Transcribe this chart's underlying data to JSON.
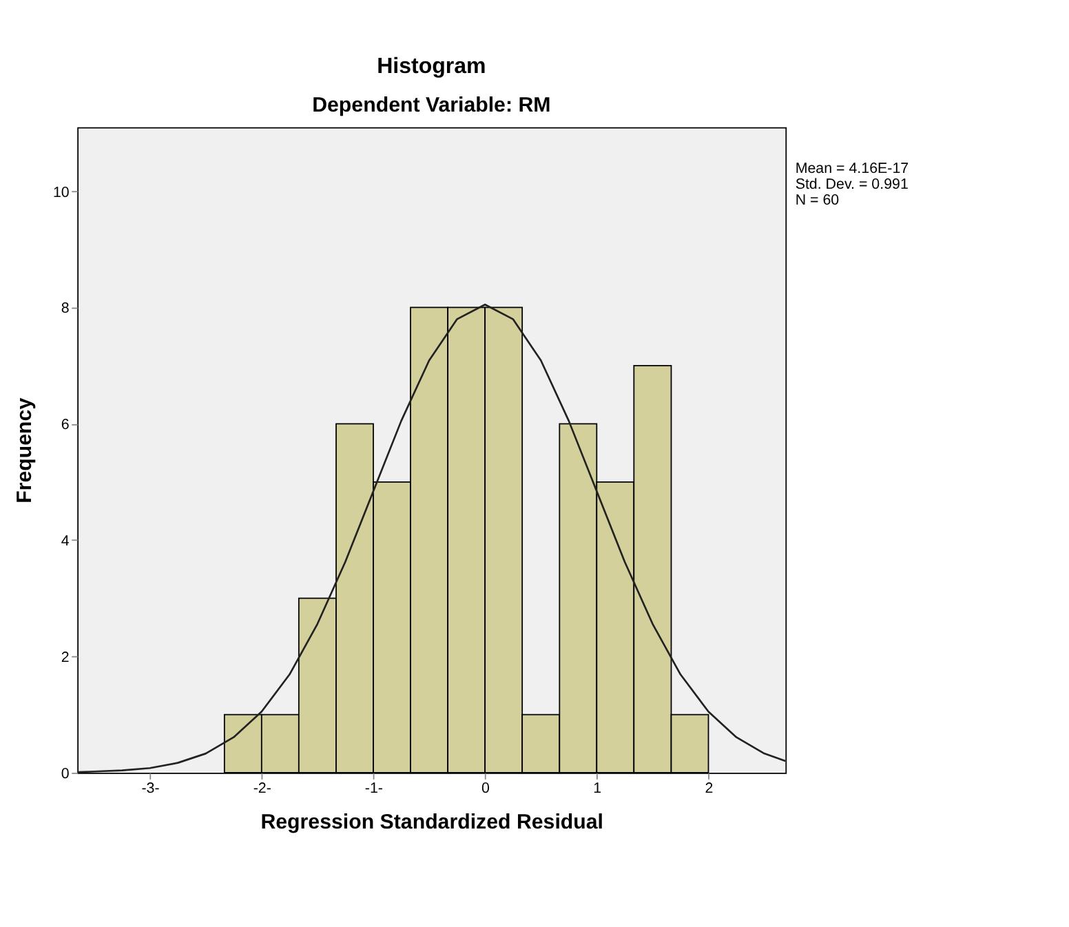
{
  "chart_data": {
    "type": "histogram",
    "title": "Histogram",
    "subtitle": "Dependent Variable: RM",
    "xlabel": "Regression Standardized Residual",
    "ylabel": "Frequency",
    "bins": [
      -2.333,
      -2.0,
      -1.667,
      -1.333,
      -1.0,
      -0.667,
      -0.333,
      0.0,
      0.333,
      0.667,
      1.0,
      1.333,
      1.667,
      2.0
    ],
    "values": [
      1,
      1,
      3,
      6,
      5,
      8,
      8,
      8,
      1,
      6,
      5,
      7,
      1
    ],
    "color": "#d4d09b",
    "series": [
      {
        "type": "line",
        "color": "#222222",
        "x": [
          -3.65,
          -3.5,
          -3.25,
          -3.0,
          -2.75,
          -2.5,
          -2.25,
          -2.0,
          -1.75,
          -1.5,
          -1.25,
          -1.0,
          -0.75,
          -0.5,
          -0.25,
          0.0,
          0.25,
          0.5,
          0.75,
          1.0,
          1.25,
          1.5,
          1.75,
          2.0,
          2.25,
          2.5,
          2.69
        ],
        "values": [
          0.01,
          0.02,
          0.04,
          0.08,
          0.17,
          0.33,
          0.61,
          1.05,
          1.69,
          2.56,
          3.63,
          4.84,
          6.05,
          7.09,
          7.8,
          8.05,
          7.8,
          7.09,
          6.05,
          4.84,
          3.63,
          2.56,
          1.69,
          1.05,
          0.61,
          0.33,
          0.2
        ]
      }
    ],
    "xlim": [
      -3.65,
      2.69
    ],
    "xticks": [
      {
        "value": -3,
        "label": "-3-"
      },
      {
        "value": -2,
        "label": "-2-"
      },
      {
        "value": -1,
        "label": "-1-"
      },
      0,
      1,
      2
    ],
    "ylim": [
      0,
      11.1
    ],
    "yticks": [
      0,
      2,
      4,
      6,
      8,
      10
    ],
    "grid": false,
    "annotations": [
      "Mean = 4.16E-17",
      "Std. Dev. = 0.991",
      "N = 60"
    ]
  }
}
